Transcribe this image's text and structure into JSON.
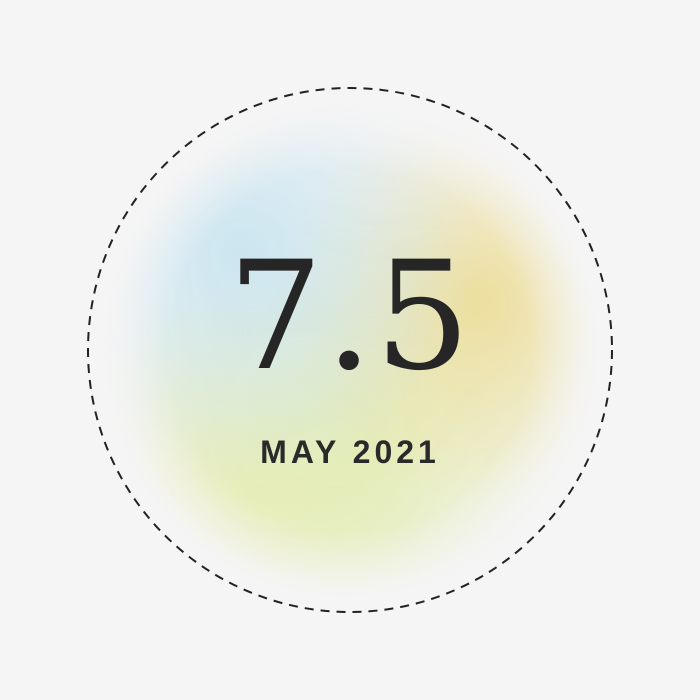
{
  "badge": {
    "value": "7.5",
    "date": "MAY 2021"
  },
  "colors": {
    "background": "#f5f5f5",
    "text": "#262626",
    "ring": "#222222",
    "blob_blue": "#c8e4f0",
    "blob_yellow": "#ecdc96",
    "blob_green": "#e2ecb4"
  }
}
